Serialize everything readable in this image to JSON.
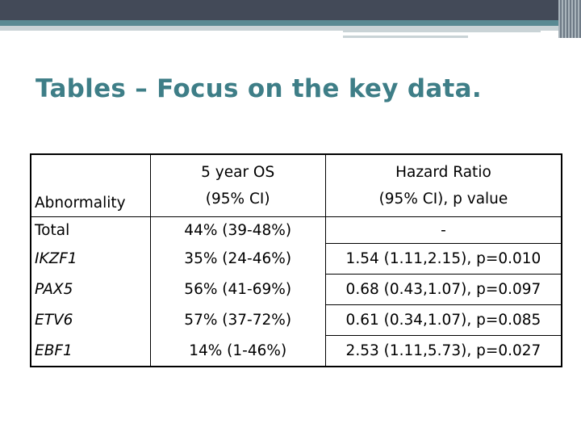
{
  "slide": {
    "title": "Tables – Focus on the key data."
  },
  "table": {
    "headers": {
      "abnormality": "Abnormality",
      "os_line1": "5 year OS",
      "os_line2": "(95% CI)",
      "hr_line1": "Hazard Ratio",
      "hr_line2": "(95% CI), p value"
    },
    "rows": [
      {
        "abnormality": "Total",
        "os": "44% (39-48%)",
        "hr": "-"
      },
      {
        "abnormality": "IKZF1",
        "os": "35% (24-46%)",
        "hr": "1.54 (1.11,2.15), p=0.010"
      },
      {
        "abnormality": "PAX5",
        "os": "56% (41-69%)",
        "hr": "0.68 (0.43,1.07), p=0.097"
      },
      {
        "abnormality": "ETV6",
        "os": "57% (37-72%)",
        "hr": "0.61 (0.34,1.07), p=0.085"
      },
      {
        "abnormality": "EBF1",
        "os": "14% (1-46%)",
        "hr": "2.53 (1.11,5.73), p=0.027"
      }
    ]
  },
  "colors": {
    "title": "#3e7e87",
    "header_bar": "#434a58",
    "accent_teal": "#5a8a93"
  }
}
